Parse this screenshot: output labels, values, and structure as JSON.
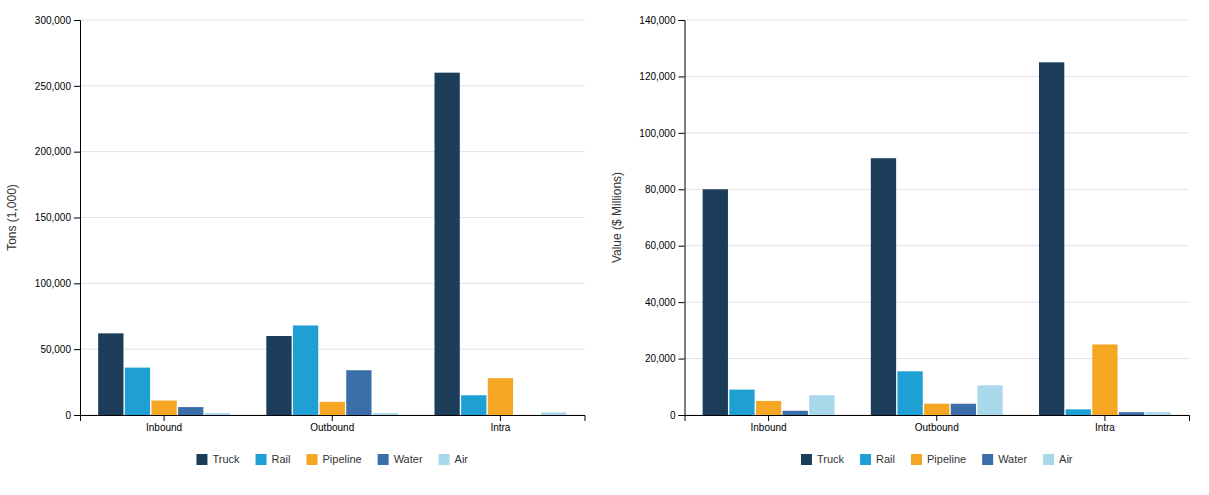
{
  "chart_data": [
    {
      "type": "bar",
      "ylabel": "Tons (1,000)",
      "categories": [
        "Inbound",
        "Outbound",
        "Intra"
      ],
      "series": [
        {
          "name": "Truck",
          "color": "#1c3d5a",
          "values": [
            62000,
            60000,
            260000
          ]
        },
        {
          "name": "Rail",
          "color": "#1ea0d5",
          "values": [
            36000,
            68000,
            15000
          ]
        },
        {
          "name": "Pipeline",
          "color": "#f5a623",
          "values": [
            11000,
            10000,
            28000
          ]
        },
        {
          "name": "Water",
          "color": "#3a6ea8",
          "values": [
            6000,
            34000,
            0
          ]
        },
        {
          "name": "Air",
          "color": "#a8d8ea",
          "values": [
            1500,
            1500,
            2000
          ]
        }
      ],
      "ylim": [
        0,
        300000
      ],
      "yticks": [
        0,
        {
          "value": 50000,
          "label": "50,000"
        },
        {
          "value": 100000,
          "label": "100,000"
        },
        {
          "value": 150000,
          "label": "150,000"
        },
        {
          "value": 200000,
          "label": "200,000"
        },
        {
          "value": 250000,
          "label": "250,000"
        },
        {
          "value": 300000,
          "label": "300,000"
        }
      ],
      "grid": true,
      "legend": "bottom"
    },
    {
      "type": "bar",
      "ylabel": "Value ($ Millions)",
      "categories": [
        "Inbound",
        "Outbound",
        "Intra"
      ],
      "series": [
        {
          "name": "Truck",
          "color": "#1c3d5a",
          "values": [
            80000,
            91000,
            125000
          ]
        },
        {
          "name": "Rail",
          "color": "#1ea0d5",
          "values": [
            9000,
            15500,
            2000
          ]
        },
        {
          "name": "Pipeline",
          "color": "#f5a623",
          "values": [
            5000,
            4000,
            25000
          ]
        },
        {
          "name": "Water",
          "color": "#3a6ea8",
          "values": [
            1500,
            4000,
            1000
          ]
        },
        {
          "name": "Air",
          "color": "#a8d8ea",
          "values": [
            7000,
            10500,
            1000
          ]
        }
      ],
      "ylim": [
        0,
        140000
      ],
      "yticks": [
        0,
        {
          "value": 20000,
          "label": "20,000"
        },
        {
          "value": 40000,
          "label": "40,000"
        },
        {
          "value": 60000,
          "label": "60,000"
        },
        {
          "value": 80000,
          "label": "80,000"
        },
        {
          "value": 100000,
          "label": "100,000"
        },
        {
          "value": 120000,
          "label": "120,000"
        },
        {
          "value": 140000,
          "label": "140,000"
        }
      ],
      "grid": true,
      "legend": "bottom"
    }
  ]
}
